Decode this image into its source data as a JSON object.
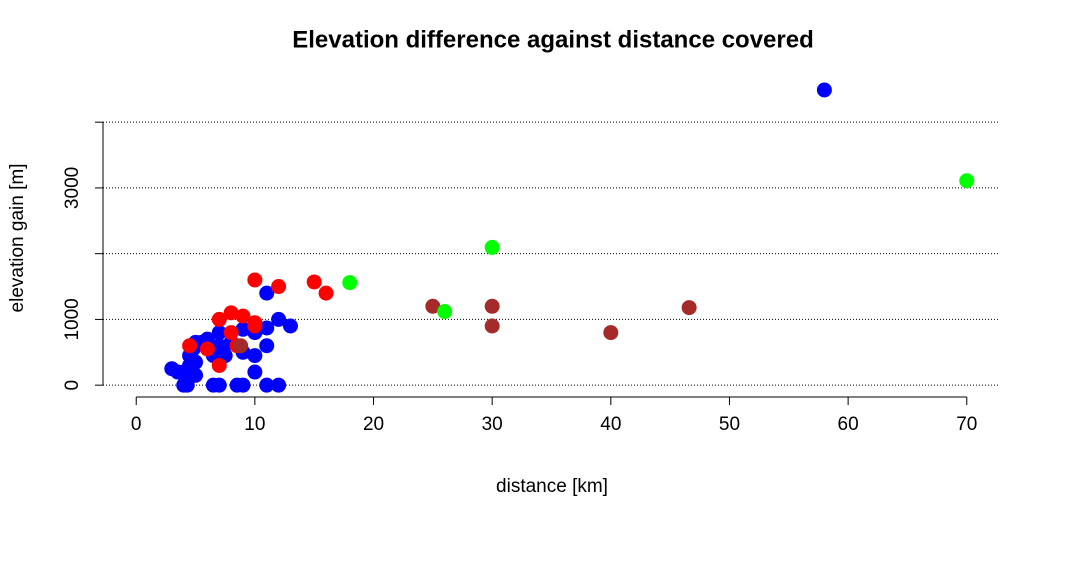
{
  "chart_data": {
    "type": "scatter",
    "title": "Elevation difference against distance covered",
    "x_label": "distance [km]",
    "y_label": "elevation gain [m]",
    "xlim": [
      -2.8,
      72.8
    ],
    "ylim": [
      -180,
      4672
    ],
    "xticks": [
      0,
      10,
      20,
      30,
      40,
      50,
      60,
      70
    ],
    "yticks": [
      0,
      1000,
      {
        "value": 2000,
        "label": null
      },
      3000,
      {
        "value": 4000,
        "label": null
      }
    ],
    "grid": true,
    "series": [
      {
        "color": "#0000ff",
        "x": [
          58,
          11,
          12,
          13,
          11,
          10,
          9,
          11,
          10,
          10,
          9,
          8,
          7,
          7,
          6.5,
          7.5,
          6,
          5.5,
          5,
          4.5,
          5,
          4.5,
          3,
          4,
          4.5,
          5,
          4,
          4.3,
          6.5,
          7,
          8.5,
          9,
          11,
          12,
          3.5,
          4.8
        ],
        "y": [
          4490,
          1400,
          1000,
          900,
          870,
          800,
          850,
          600,
          450,
          200,
          500,
          650,
          800,
          600,
          450,
          450,
          700,
          650,
          650,
          450,
          350,
          300,
          250,
          200,
          150,
          150,
          0,
          0,
          0,
          0,
          0,
          0,
          0,
          0,
          200,
          550
        ]
      },
      {
        "color": "#ff0000",
        "x": [
          10,
          12,
          15,
          16,
          4.5,
          7,
          8,
          9,
          10,
          10,
          8,
          6,
          7,
          8.5
        ],
        "y": [
          1600,
          1500,
          1570,
          1400,
          600,
          1000,
          1100,
          1050,
          950,
          900,
          800,
          550,
          300,
          600
        ]
      },
      {
        "color": "#a52a2a",
        "x": [
          25,
          30,
          30,
          40,
          46.6,
          8.8
        ],
        "y": [
          1200,
          1200,
          900,
          800,
          1180,
          600
        ]
      },
      {
        "color": "#00ff00",
        "x": [
          18,
          26,
          30,
          70
        ],
        "y": [
          1560,
          1120,
          2095,
          3110
        ]
      }
    ]
  }
}
